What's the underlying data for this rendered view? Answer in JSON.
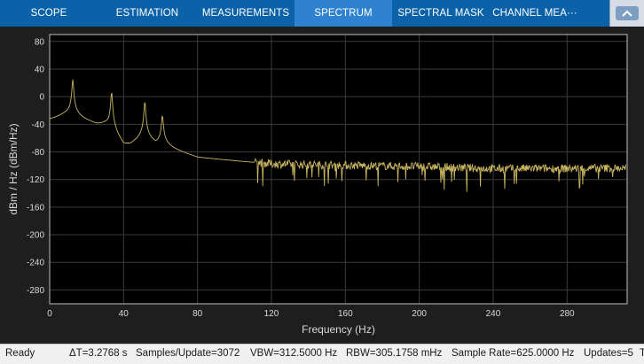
{
  "toolstrip": {
    "tabs": [
      {
        "label": "SCOPE",
        "active": false
      },
      {
        "label": "ESTIMATION",
        "active": false
      },
      {
        "label": "MEASUREMENTS",
        "active": false
      },
      {
        "label": "SPECTRUM",
        "active": true
      },
      {
        "label": "SPECTRAL MASK",
        "active": false
      },
      {
        "label": "CHANNEL MEA···",
        "active": false
      }
    ],
    "collapse_icon": "chevron-up-icon"
  },
  "chart_data": {
    "type": "line",
    "xlabel": "Frequency (Hz)",
    "ylabel": "dBm / Hz (dBm/Hz)",
    "xlim": [
      0,
      312.5
    ],
    "ylim": [
      -300,
      90
    ],
    "xticks": [
      0,
      40,
      80,
      120,
      160,
      200,
      240,
      280
    ],
    "yticks": [
      80,
      40,
      0,
      -40,
      -80,
      -120,
      -160,
      -200,
      -240,
      -280
    ],
    "grid": true,
    "line_color": "#c8b560",
    "background": "#000000",
    "series": [
      {
        "peaks": [
          {
            "x": 12.5,
            "y": 25
          },
          {
            "x": 33.5,
            "y": 7
          },
          {
            "x": 51.5,
            "y": -7
          },
          {
            "x": 61,
            "y": -27
          }
        ],
        "noise_floor": [
          {
            "x": 0,
            "y": -38
          },
          {
            "x": 8,
            "y": -34
          },
          {
            "x": 18,
            "y": -40
          },
          {
            "x": 30,
            "y": -48
          },
          {
            "x": 40,
            "y": -80
          },
          {
            "x": 50,
            "y": -70
          },
          {
            "x": 62,
            "y": -78
          },
          {
            "x": 80,
            "y": -92
          },
          {
            "x": 120,
            "y": -100
          },
          {
            "x": 200,
            "y": -103
          },
          {
            "x": 240,
            "y": -106
          },
          {
            "x": 312,
            "y": -105
          }
        ]
      }
    ]
  },
  "status": {
    "state": "Ready",
    "delta_t": "ΔT=3.2768 s",
    "samples": "Samples/Update=3072",
    "vbw": "VBW=312.5000 Hz",
    "rbw": "RBW=305.1758 mHz",
    "sample_rate": "Sample Rate=625.0000 Hz",
    "updates": "Updates=5",
    "trailing": "T"
  }
}
